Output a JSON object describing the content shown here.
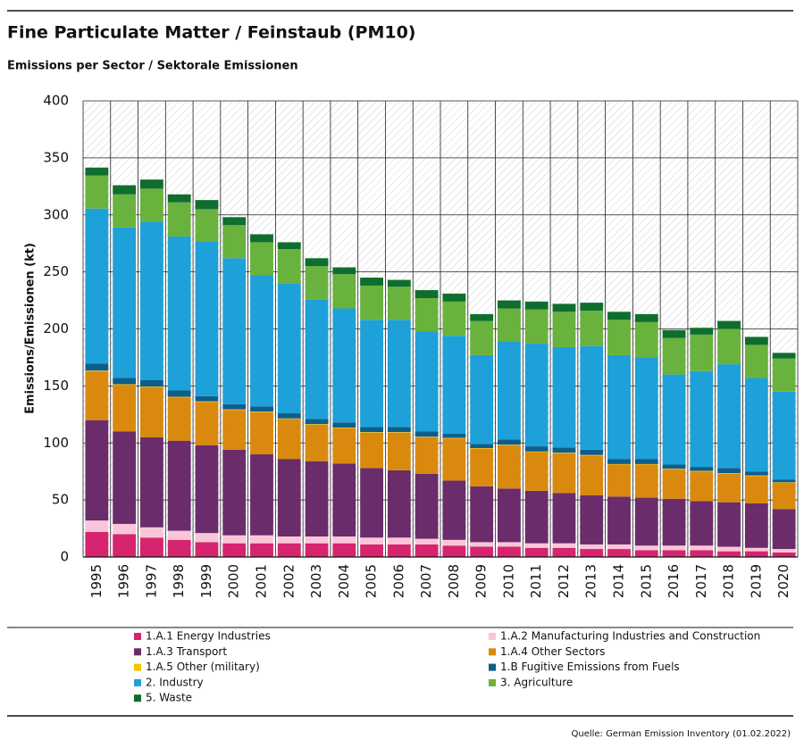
{
  "chart_data": {
    "type": "stacked_bar",
    "title": "Fine Particulate Matter / Feinstaub (PM10)",
    "subtitle": "Emissions per Sector / Sektorale Emissionen",
    "y_label": "Emissions/Emissionen (kt)",
    "source": "Quelle: German Emission Inventory (01.02.2022)",
    "categories": [
      "1995",
      "1996",
      "1997",
      "1998",
      "1999",
      "2000",
      "2001",
      "2002",
      "2003",
      "2004",
      "2005",
      "2006",
      "2007",
      "2008",
      "2009",
      "2010",
      "2011",
      "2012",
      "2013",
      "2014",
      "2015",
      "2016",
      "2017",
      "2018",
      "2019",
      "2020"
    ],
    "ylim": [
      0,
      400
    ],
    "yticks": [
      0,
      50,
      100,
      150,
      200,
      250,
      300,
      350,
      400
    ],
    "grid": true,
    "series": [
      {
        "name": "1.A.1 Energy Industries",
        "color": "#d6246e",
        "values": [
          22,
          20,
          17,
          15,
          13,
          12,
          12,
          12,
          12,
          12,
          11,
          11,
          11,
          10,
          9,
          9,
          8,
          8,
          7,
          7,
          6,
          6,
          6,
          5,
          5,
          4
        ]
      },
      {
        "name": "1.A.2 Manufacturing Industries and Construction",
        "color": "#f9c6d9",
        "values": [
          10,
          9,
          9,
          8,
          8,
          7,
          7,
          6,
          6,
          6,
          6,
          6,
          5,
          5,
          4,
          4,
          4,
          4,
          4,
          4,
          4,
          4,
          4,
          4,
          3,
          3
        ]
      },
      {
        "name": "1.A.3 Transport",
        "color": "#6a2c6b",
        "values": [
          88,
          81,
          79,
          79,
          77,
          75,
          71,
          68,
          66,
          64,
          61,
          59,
          57,
          52,
          49,
          47,
          46,
          44,
          43,
          42,
          42,
          41,
          39,
          39,
          39,
          35
        ]
      },
      {
        "name": "1.A.4 Other Sectors",
        "color": "#d98a0e",
        "values": [
          43,
          41,
          44,
          38,
          38,
          35,
          37,
          35,
          32,
          31,
          31,
          33,
          32,
          37,
          33,
          38,
          34,
          35,
          35,
          28,
          29,
          26,
          26,
          25,
          24,
          23
        ]
      },
      {
        "name": "1.A.5 Other (military)",
        "color": "#f5c400",
        "values": [
          0.5,
          0.5,
          0.5,
          0.5,
          0.5,
          0.5,
          0.5,
          0.5,
          0.5,
          0.5,
          0.5,
          0.5,
          0.5,
          0.5,
          0.5,
          0.5,
          0.5,
          0.5,
          0.5,
          0.5,
          0.5,
          0.5,
          0.5,
          0.5,
          0.5,
          0.5
        ]
      },
      {
        "name": "1.B Fugitive Emissions from Fuels",
        "color": "#0e5e8a",
        "values": [
          6,
          5.5,
          5.5,
          5.5,
          4.5,
          4.5,
          4.5,
          4.5,
          4.5,
          4.5,
          4.5,
          4.5,
          4.5,
          3.5,
          3.5,
          4.5,
          4.5,
          4.5,
          4.5,
          4.5,
          4.5,
          3.5,
          3.5,
          4.5,
          3.5,
          2.5
        ]
      },
      {
        "name": "2. Industry",
        "color": "#1ea0d8",
        "values": [
          136,
          132,
          139,
          135,
          136,
          128,
          115,
          114,
          105,
          100,
          94,
          94,
          88,
          86,
          78,
          86,
          90,
          88,
          91,
          91,
          89,
          79,
          84,
          91,
          82,
          77
        ]
      },
      {
        "name": "3. Agriculture",
        "color": "#6ab23e",
        "values": [
          29,
          29,
          29,
          30,
          28,
          29,
          29,
          30,
          29,
          30,
          30,
          29,
          29,
          30,
          30,
          29,
          30,
          31,
          31,
          31,
          31,
          32,
          32,
          31,
          29,
          29
        ]
      },
      {
        "name": "5. Waste",
        "color": "#0f6e2e",
        "values": [
          7,
          8,
          8,
          7,
          8,
          7,
          7,
          6,
          7,
          6,
          7,
          6,
          7,
          7,
          6,
          7,
          7,
          7,
          7,
          7,
          7,
          7,
          6,
          7,
          7,
          5
        ]
      }
    ]
  }
}
